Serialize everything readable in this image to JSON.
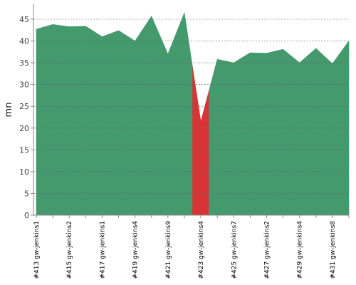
{
  "chart_data": {
    "type": "area",
    "ylabel": "mn",
    "categories": [
      "#413 gw-jenkins1",
      null,
      "#415 gw-jenkins2",
      null,
      "#417 gw-jenkins1",
      null,
      "#419 gw-jenkins4",
      null,
      "#421 gw-jenkins9",
      null,
      "#423 gw-jenkins4",
      null,
      "#425 gw-jenkins7",
      null,
      "#427 gw-jenkins2",
      null,
      "#429 gw-jenkins4",
      null,
      "#431 gw-jenkins8",
      null
    ],
    "values": [
      42.7,
      43.8,
      43.3,
      43.4,
      41,
      42.4,
      40,
      45.7,
      37,
      46.5,
      21.5,
      35.8,
      35,
      37.3,
      37.2,
      38.1,
      35,
      38.3,
      34.8,
      40
    ],
    "colors": [
      "#459a6d",
      "#459a6d",
      "#459a6d",
      "#459a6d",
      "#459a6d",
      "#459a6d",
      "#459a6d",
      "#459a6d",
      "#459a6d",
      "#459a6d",
      "#d73535",
      "#459a6d",
      "#459a6d",
      "#459a6d",
      "#459a6d",
      "#459a6d",
      "#459a6d",
      "#459a6d",
      "#459a6d",
      "#459a6d"
    ],
    "ylim": [
      0,
      48.6
    ],
    "yticks": [
      0,
      5,
      10,
      15,
      20,
      25,
      30,
      35,
      40,
      45
    ],
    "grid": true
  }
}
